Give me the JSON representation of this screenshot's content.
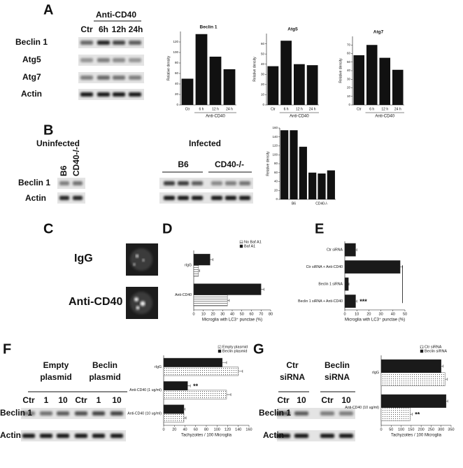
{
  "figure": {
    "panel_labels": [
      "A",
      "B",
      "C",
      "D",
      "E",
      "F",
      "G"
    ],
    "a_blot": {
      "header": "Anti-CD40",
      "lanes": [
        "Ctr",
        "6h",
        "12h",
        "24h"
      ],
      "rows": [
        "Beclin 1",
        "Atg5",
        "Atg7",
        "Actin"
      ]
    },
    "b_blot": {
      "groups": [
        "Uninfected",
        "Infected"
      ],
      "lanes": [
        "B6",
        "CD40-/-",
        "B6",
        "CD40-/-"
      ],
      "rows": [
        "Beclin 1",
        "Actin"
      ]
    },
    "c_images": [
      "IgG",
      "Anti-CD40"
    ],
    "f_blot": {
      "groups": [
        [
          "Empty",
          "plasmid"
        ],
        [
          "Beclin",
          "plasmid"
        ]
      ],
      "lanes": [
        "Ctr",
        "1",
        "10",
        "Ctr",
        "1",
        "10"
      ],
      "rows": [
        "Beclin 1",
        "Actin"
      ]
    },
    "g_blot": {
      "groups": [
        [
          "Ctr",
          "siRNA"
        ],
        [
          "Beclin",
          "siRNA"
        ]
      ],
      "lanes": [
        "Ctr",
        "10",
        "Ctr",
        "10"
      ],
      "rows": [
        "Beclin 1",
        "Actin"
      ]
    }
  },
  "chart_data": [
    {
      "type": "bar",
      "title": "Beclin 1",
      "y_label": "Relative density",
      "x_label": "Anti-CD40",
      "categories": [
        "Ctr",
        "6 h",
        "12 h",
        "24 h"
      ],
      "values": [
        50,
        135,
        92,
        68
      ],
      "color": "#111111",
      "ylim": [
        0,
        140
      ],
      "yticks": [
        0,
        20,
        40,
        60,
        80,
        100,
        120
      ]
    },
    {
      "type": "bar",
      "title": "Atg5",
      "y_label": "Relative density",
      "x_label": "Anti-CD40",
      "categories": [
        "Ctr",
        "6 h",
        "12 h",
        "24 h"
      ],
      "values": [
        38,
        63,
        40,
        39
      ],
      "color": "#111111",
      "ylim": [
        0,
        70
      ],
      "yticks": [
        0,
        10,
        20,
        30,
        40,
        50,
        60
      ]
    },
    {
      "type": "bar",
      "title": "Atg7",
      "y_label": "Relative density",
      "x_label": "Anti-CD40",
      "categories": [
        "Ctr",
        "6 h",
        "12 h",
        "24 h"
      ],
      "values": [
        58,
        70,
        55,
        41
      ],
      "color": "#111111",
      "ylim": [
        0,
        80
      ],
      "yticks": [
        0,
        10,
        20,
        30,
        40,
        50,
        60,
        70
      ]
    },
    {
      "type": "bar",
      "y_label": "Relative density",
      "categories": [
        null,
        "B6",
        null,
        null,
        "CD40-/-",
        null
      ],
      "values": [
        155,
        155,
        118,
        60,
        58,
        65
      ],
      "color": "#111111",
      "ylim": [
        0,
        160
      ],
      "yticks": [
        0,
        20,
        40,
        60,
        80,
        100,
        120,
        140,
        160
      ]
    },
    {
      "type": "barh",
      "x_label": "Microglia with LC3⁺ punctae (%)",
      "legend": "upper right",
      "categories": [
        "rIgG",
        "Anti-CD40"
      ],
      "series": [
        {
          "name": "No Baf A1",
          "color": "#999999",
          "pattern": "stripes",
          "values": [
            5,
            35
          ],
          "errors": [
            1,
            2
          ]
        },
        {
          "name": "Baf A1",
          "color": "#1a1a1a",
          "values": [
            17,
            70
          ],
          "errors": [
            3,
            3
          ]
        }
      ],
      "xlim": [
        0,
        80
      ],
      "xticks": [
        0,
        10,
        20,
        30,
        40,
        50,
        60,
        70,
        80
      ]
    },
    {
      "type": "barh",
      "x_label": "Microglia with LC3⁺ punctae (%)",
      "categories": [
        "Ctr siRNA",
        "Ctr siRNA + Anti-CD40",
        "Beclin 1 siRNA",
        "Beclin 1 siRNA + Anti-CD40"
      ],
      "series": [
        {
          "color": "#1a1a1a",
          "values": [
            9,
            46,
            3,
            9
          ],
          "errors": [
            1,
            2,
            0.5,
            1
          ],
          "annotations": [
            null,
            null,
            null,
            "***"
          ]
        }
      ],
      "xlim": [
        0,
        50
      ],
      "xticks": [
        0,
        10,
        20,
        30,
        40,
        50
      ]
    },
    {
      "type": "barh",
      "x_label": "Tachyzoites / 100 Microglia",
      "legend": "upper right",
      "categories": [
        "rIgG",
        "Anti-CD40 (1 ug/ml)",
        "Anti-CD40 (10 ug/ml)"
      ],
      "series": [
        {
          "name": "Empty plasmid",
          "color": "#777777",
          "pattern": "dots",
          "values": [
            140,
            118,
            38
          ],
          "errors": [
            8,
            8,
            4
          ]
        },
        {
          "name": "Beclin plasmid",
          "color": "#1a1a1a",
          "values": [
            110,
            45,
            38
          ],
          "errors": [
            8,
            5,
            2
          ],
          "annotations": [
            null,
            "**",
            null
          ]
        }
      ],
      "xlim": [
        0,
        160
      ],
      "xticks": [
        0,
        20,
        40,
        60,
        80,
        100,
        120,
        140,
        160
      ]
    },
    {
      "type": "barh",
      "x_label": "Tachyzoites / 100 Microglia",
      "legend": "upper right",
      "categories": [
        "rIgG",
        "Anti-CD40 (10 ug/ml)"
      ],
      "series": [
        {
          "name": "Ctr siRNA",
          "color": "#777777",
          "pattern": "dots",
          "values": [
            320,
            145
          ],
          "errors": [
            10,
            10
          ],
          "annotations": [
            null,
            "**"
          ]
        },
        {
          "name": "Beclin siRNA",
          "color": "#1a1a1a",
          "values": [
            300,
            325
          ],
          "errors": [
            10,
            8
          ]
        }
      ],
      "xlim": [
        0,
        350
      ],
      "xticks": [
        0,
        50,
        100,
        150,
        200,
        250,
        300,
        350
      ]
    }
  ]
}
